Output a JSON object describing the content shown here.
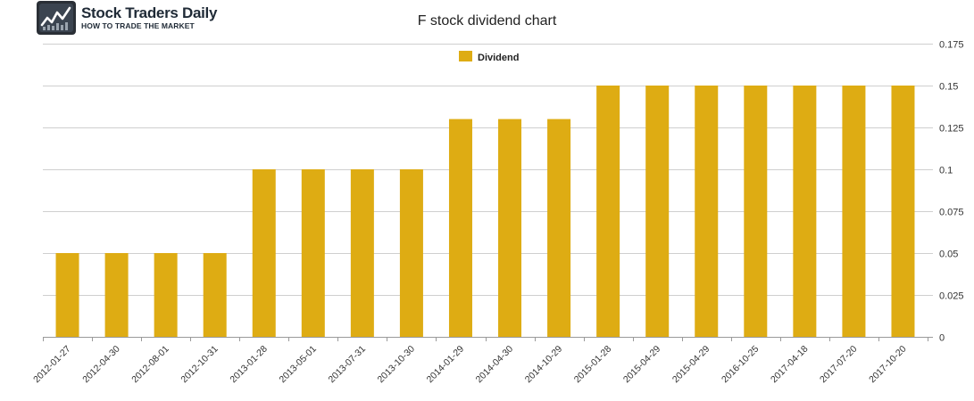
{
  "logo": {
    "name": "Stock Traders Daily",
    "tagline": "HOW TO TRADE THE MARKET"
  },
  "chart_data": {
    "type": "bar",
    "title": "F stock dividend chart",
    "xlabel": "",
    "ylabel": "",
    "categories": [
      "2012-01-27",
      "2012-04-30",
      "2012-08-01",
      "2012-10-31",
      "2013-01-28",
      "2013-05-01",
      "2013-07-31",
      "2013-10-30",
      "2014-01-29",
      "2014-04-30",
      "2014-10-29",
      "2015-01-28",
      "2015-04-29",
      "2015-04-29",
      "2016-10-25",
      "2017-04-18",
      "2017-07-20",
      "2017-10-20"
    ],
    "series": [
      {
        "name": "Dividend",
        "color": "#deac13",
        "values": [
          0.05,
          0.05,
          0.05,
          0.05,
          0.1,
          0.1,
          0.1,
          0.1,
          0.13,
          0.13,
          0.13,
          0.15,
          0.15,
          0.15,
          0.15,
          0.15,
          0.15,
          0.15
        ]
      }
    ],
    "ylim": [
      0,
      0.175
    ],
    "yticks": [
      0,
      0.025,
      0.05,
      0.075,
      0.1,
      0.125,
      0.15,
      0.175
    ],
    "ytick_labels": [
      "0",
      "0.025",
      "0.05",
      "0.075",
      "0.1",
      "0.125",
      "0.15",
      "0.175"
    ],
    "y_axis_side": "right",
    "grid": true,
    "legend": "top-center"
  }
}
